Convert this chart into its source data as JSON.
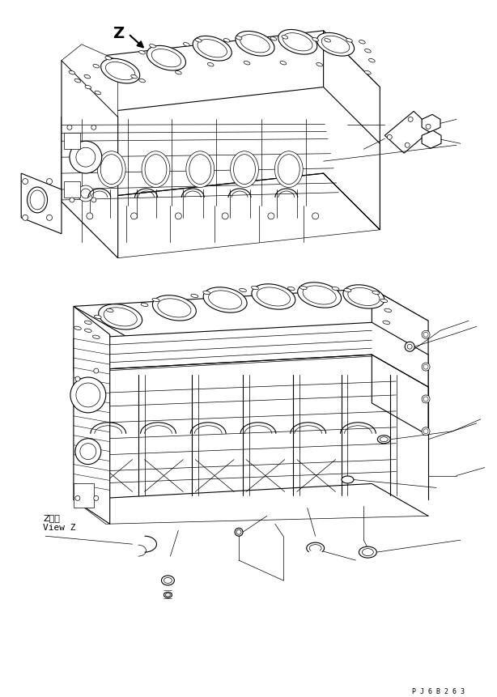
{
  "bg_color": "#ffffff",
  "line_color": "#000000",
  "fig_width": 6.14,
  "fig_height": 8.61,
  "dpi": 100,
  "bottom_code": "P J 6 B 2 6 3",
  "view_label_line1": "Z　視",
  "view_label_line2": "View Z",
  "z_label": "Z"
}
